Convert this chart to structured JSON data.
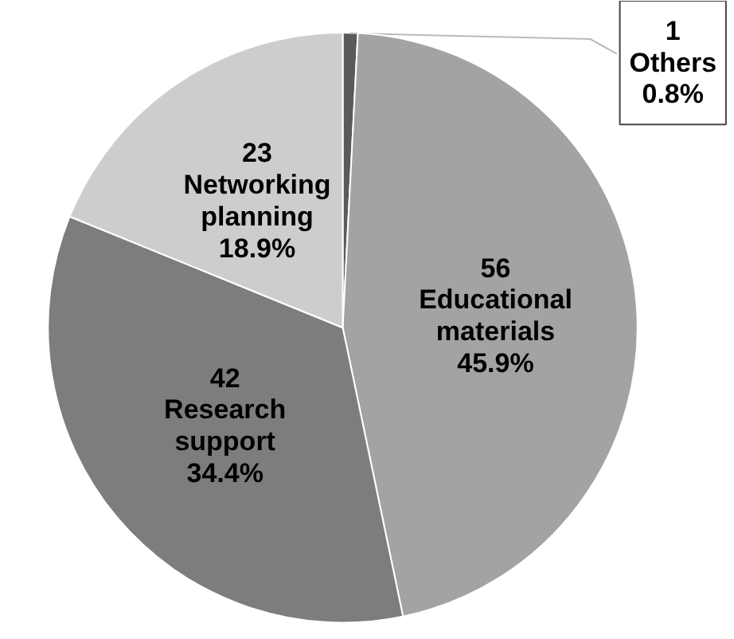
{
  "chart_data": {
    "type": "pie",
    "categories": [
      "Others",
      "Educational materials",
      "Research support",
      "Networking planning"
    ],
    "values": [
      1,
      56,
      42,
      23
    ],
    "colors": [
      "#5a5a5a",
      "#a3a3a3",
      "#7d7d7d",
      "#cdcdcd"
    ],
    "data_labels": true,
    "annotations": [
      {
        "text": "0.8%",
        "x": "Others"
      },
      {
        "text": "45.9%",
        "x": "Educational materials"
      },
      {
        "text": "34.4%",
        "x": "Research support"
      },
      {
        "text": "18.9%",
        "x": "Networking planning"
      }
    ]
  }
}
